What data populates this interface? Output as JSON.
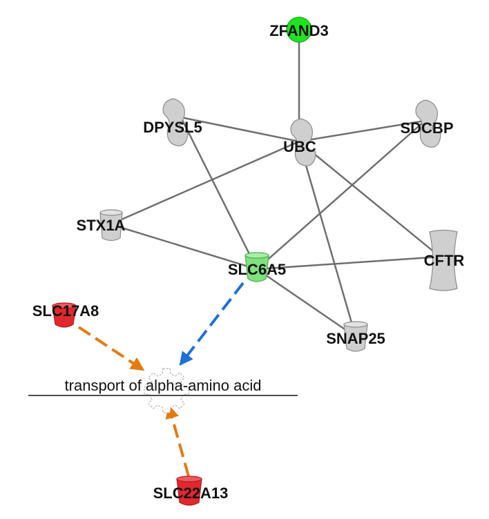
{
  "colors": {
    "edge": "#6e6e6e",
    "node_gray": "#cfcfcf",
    "node_stroke": "#8a8a8a",
    "green_strong": "#1ee41e",
    "green_light": "#7ee27e",
    "red": "#e0282e",
    "orange": "#e47a10",
    "blue": "#1f6fd8"
  },
  "nodes": {
    "zfand3": {
      "label": "ZFAND3",
      "shape": "circle",
      "fill": "green_strong"
    },
    "dpysl5": {
      "label": "DPYSL5",
      "shape": "enzyme",
      "fill": "node_gray"
    },
    "ubc": {
      "label": "UBC",
      "shape": "enzyme",
      "fill": "node_gray"
    },
    "sdcbp": {
      "label": "SDCBP",
      "shape": "enzyme",
      "fill": "node_gray"
    },
    "stx1a": {
      "label": "STX1A",
      "shape": "transporter",
      "fill": "node_gray"
    },
    "slc6a5": {
      "label": "SLC6A5",
      "shape": "transporter",
      "fill": "green_light"
    },
    "cftr": {
      "label": "CFTR",
      "shape": "ion-channel",
      "fill": "node_gray"
    },
    "slc17a8": {
      "label": "SLC17A8",
      "shape": "transporter",
      "fill": "red"
    },
    "snap25": {
      "label": "SNAP25",
      "shape": "transporter",
      "fill": "node_gray"
    },
    "slc22a13": {
      "label": "SLC22A13",
      "shape": "transporter",
      "fill": "red"
    }
  },
  "function": {
    "label": "transport of alpha-amino acid",
    "shape": "gear"
  },
  "relations": [
    {
      "from": "UBC",
      "to": "ZFAND3",
      "style": "solid"
    },
    {
      "from": "UBC",
      "to": "DPYSL5",
      "style": "solid"
    },
    {
      "from": "UBC",
      "to": "SDCBP",
      "style": "solid"
    },
    {
      "from": "UBC",
      "to": "STX1A",
      "style": "solid"
    },
    {
      "from": "UBC",
      "to": "CFTR",
      "style": "solid"
    },
    {
      "from": "UBC",
      "to": "SNAP25",
      "style": "solid"
    },
    {
      "from": "DPYSL5",
      "to": "SLC6A5",
      "style": "solid"
    },
    {
      "from": "SDCBP",
      "to": "SLC6A5",
      "style": "solid"
    },
    {
      "from": "STX1A",
      "to": "SLC6A5",
      "style": "solid"
    },
    {
      "from": "CFTR",
      "to": "SLC6A5",
      "style": "solid"
    },
    {
      "from": "SNAP25",
      "to": "SLC6A5",
      "style": "solid"
    },
    {
      "from": "SLC6A5",
      "to": "transport of alpha-amino acid",
      "style": "dashed-arrow",
      "color": "blue"
    },
    {
      "from": "SLC17A8",
      "to": "transport of alpha-amino acid",
      "style": "dashed-arrow",
      "color": "orange"
    },
    {
      "from": "SLC22A13",
      "to": "transport of alpha-amino acid",
      "style": "dashed-arrow",
      "color": "orange"
    }
  ]
}
